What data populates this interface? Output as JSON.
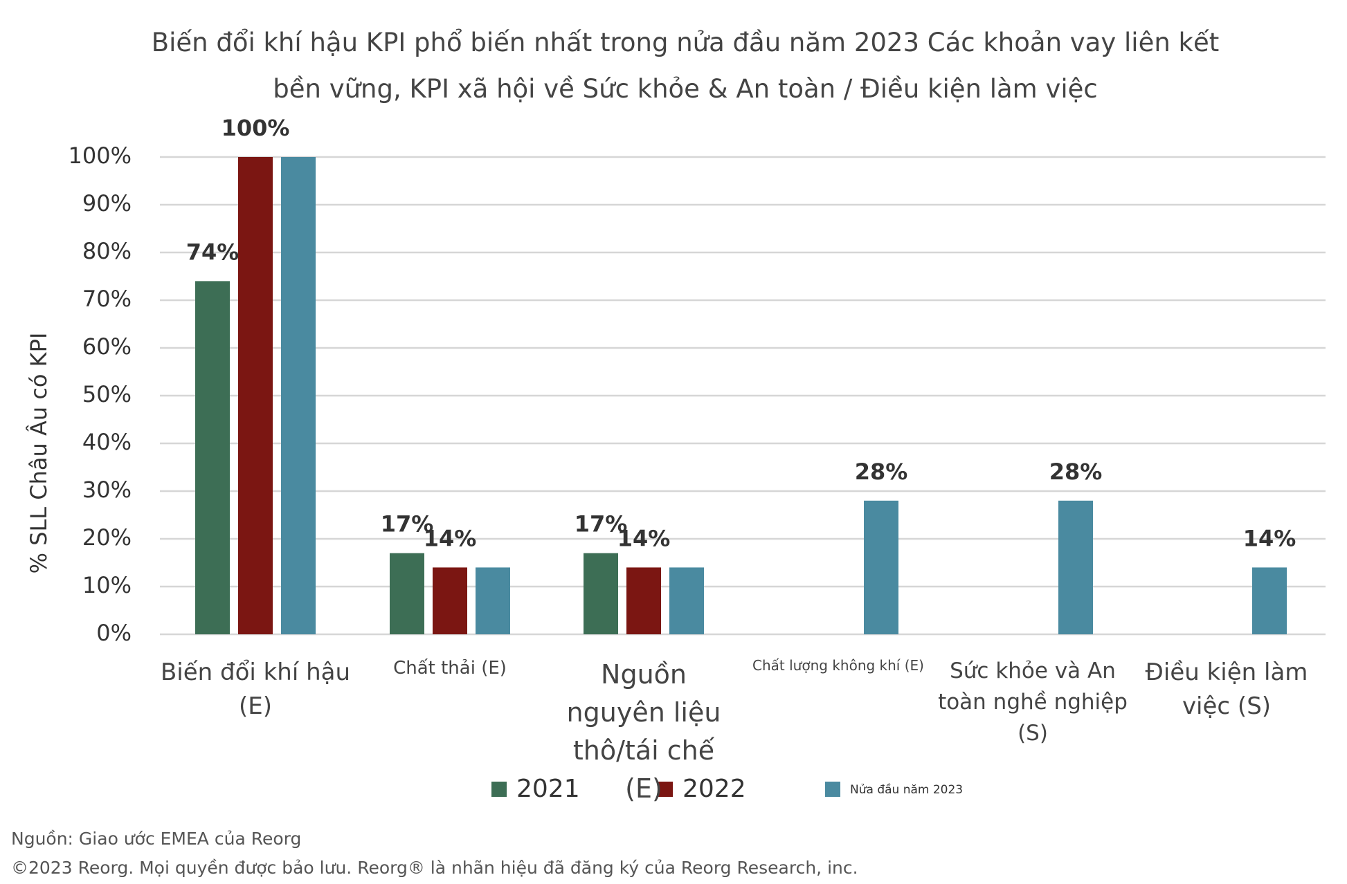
{
  "chart_data": {
    "type": "bar",
    "title": "Biến đổi khí hậu KPI phổ biến nhất trong nửa đầu năm 2023 Các khoản vay liên kết bền vững, KPI xã hội về Sức khỏe & An toàn / Điều kiện làm việc",
    "y_label": "% SLL Châu Âu có KPI",
    "categories": [
      "Biến đổi khí hậu (E)",
      "Chất thải (E)",
      "Nguồn nguyên liệu thô/tái chế (E)",
      "Chất lượng không khí (E)",
      "Sức khỏe và An toàn nghề nghiệp (S)",
      "Điều kiện làm việc (S)"
    ],
    "series": [
      {
        "name": "2021",
        "color": "#3d6e55",
        "values": [
          74,
          17,
          17,
          null,
          null,
          null
        ],
        "value_labels": [
          "74%",
          "17%",
          "17%",
          null,
          null,
          null
        ]
      },
      {
        "name": "2022",
        "color": "#7b1612",
        "values": [
          100,
          14,
          14,
          null,
          null,
          null
        ],
        "value_labels": [
          "100%",
          "14%",
          "14%",
          null,
          null,
          null
        ]
      },
      {
        "name": "Nửa đầu năm 2023",
        "color": "#4a8aa0",
        "values": [
          100,
          14,
          14,
          28,
          28,
          14
        ],
        "value_labels": [
          null,
          null,
          null,
          "28%",
          "28%",
          "14%"
        ]
      }
    ],
    "ylim": [
      0,
      100
    ],
    "yticks": [
      {
        "value": 0,
        "label": "0%"
      },
      {
        "value": 10,
        "label": "10%"
      },
      {
        "value": 20,
        "label": "20%"
      },
      {
        "value": 30,
        "label": "30%"
      },
      {
        "value": 40,
        "label": "40%"
      },
      {
        "value": 50,
        "label": "50%"
      },
      {
        "value": 60,
        "label": "60%"
      },
      {
        "value": 70,
        "label": "70%"
      },
      {
        "value": 80,
        "label": "80%"
      },
      {
        "value": 90,
        "label": "90%"
      },
      {
        "value": 100,
        "label": "100%"
      }
    ],
    "grid": true,
    "legend": "bottom",
    "source": "Nguồn: Giao ước EMEA của Reorg",
    "copyright": "©2023 Reorg. Mọi quyền được bảo lưu. Reorg® là nhãn hiệu đã đăng ký của Reorg Research, inc."
  }
}
